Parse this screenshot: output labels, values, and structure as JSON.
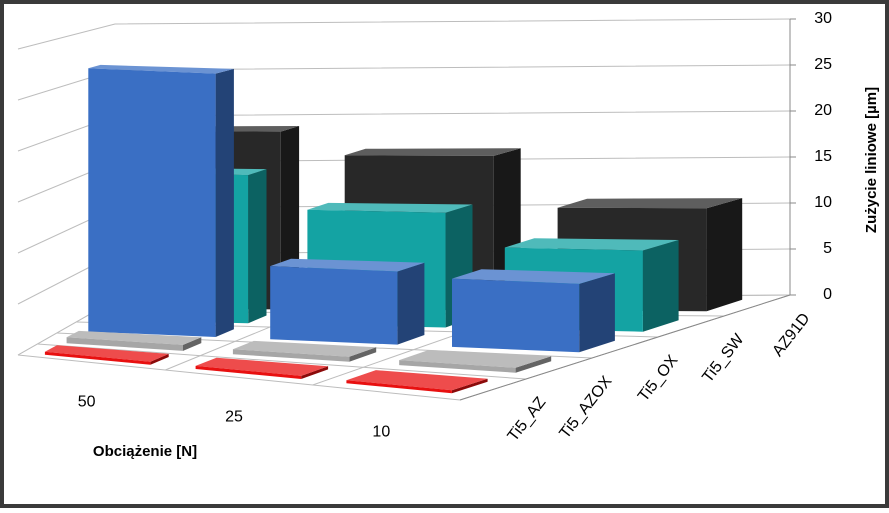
{
  "chart_data": {
    "type": "bar3d",
    "categories": [
      "50",
      "25",
      "10"
    ],
    "series": [
      {
        "name": "Ti5_AZ",
        "color": "#e81010",
        "values": [
          0.3,
          0.3,
          0.3
        ]
      },
      {
        "name": "Ti5_AZOX",
        "color": "#a6a6a6",
        "values": [
          0.6,
          0.5,
          0.5
        ]
      },
      {
        "name": "Ti5_OX",
        "color": "#3a6fc4",
        "values": [
          27,
          7.5,
          7
        ]
      },
      {
        "name": "Ti5_SW",
        "color": "#14a3a3",
        "values": [
          15.5,
          12,
          8.5
        ]
      },
      {
        "name": "AZ91D",
        "color": "#282828",
        "values": [
          19,
          16.5,
          11
        ]
      }
    ],
    "ylim": [
      0,
      30
    ],
    "yticks": [
      0,
      5,
      10,
      15,
      20,
      25,
      30
    ],
    "grid": true,
    "y_label": "Zużycie liniowe [µm]",
    "x_label": "Obciążenie [N]"
  }
}
